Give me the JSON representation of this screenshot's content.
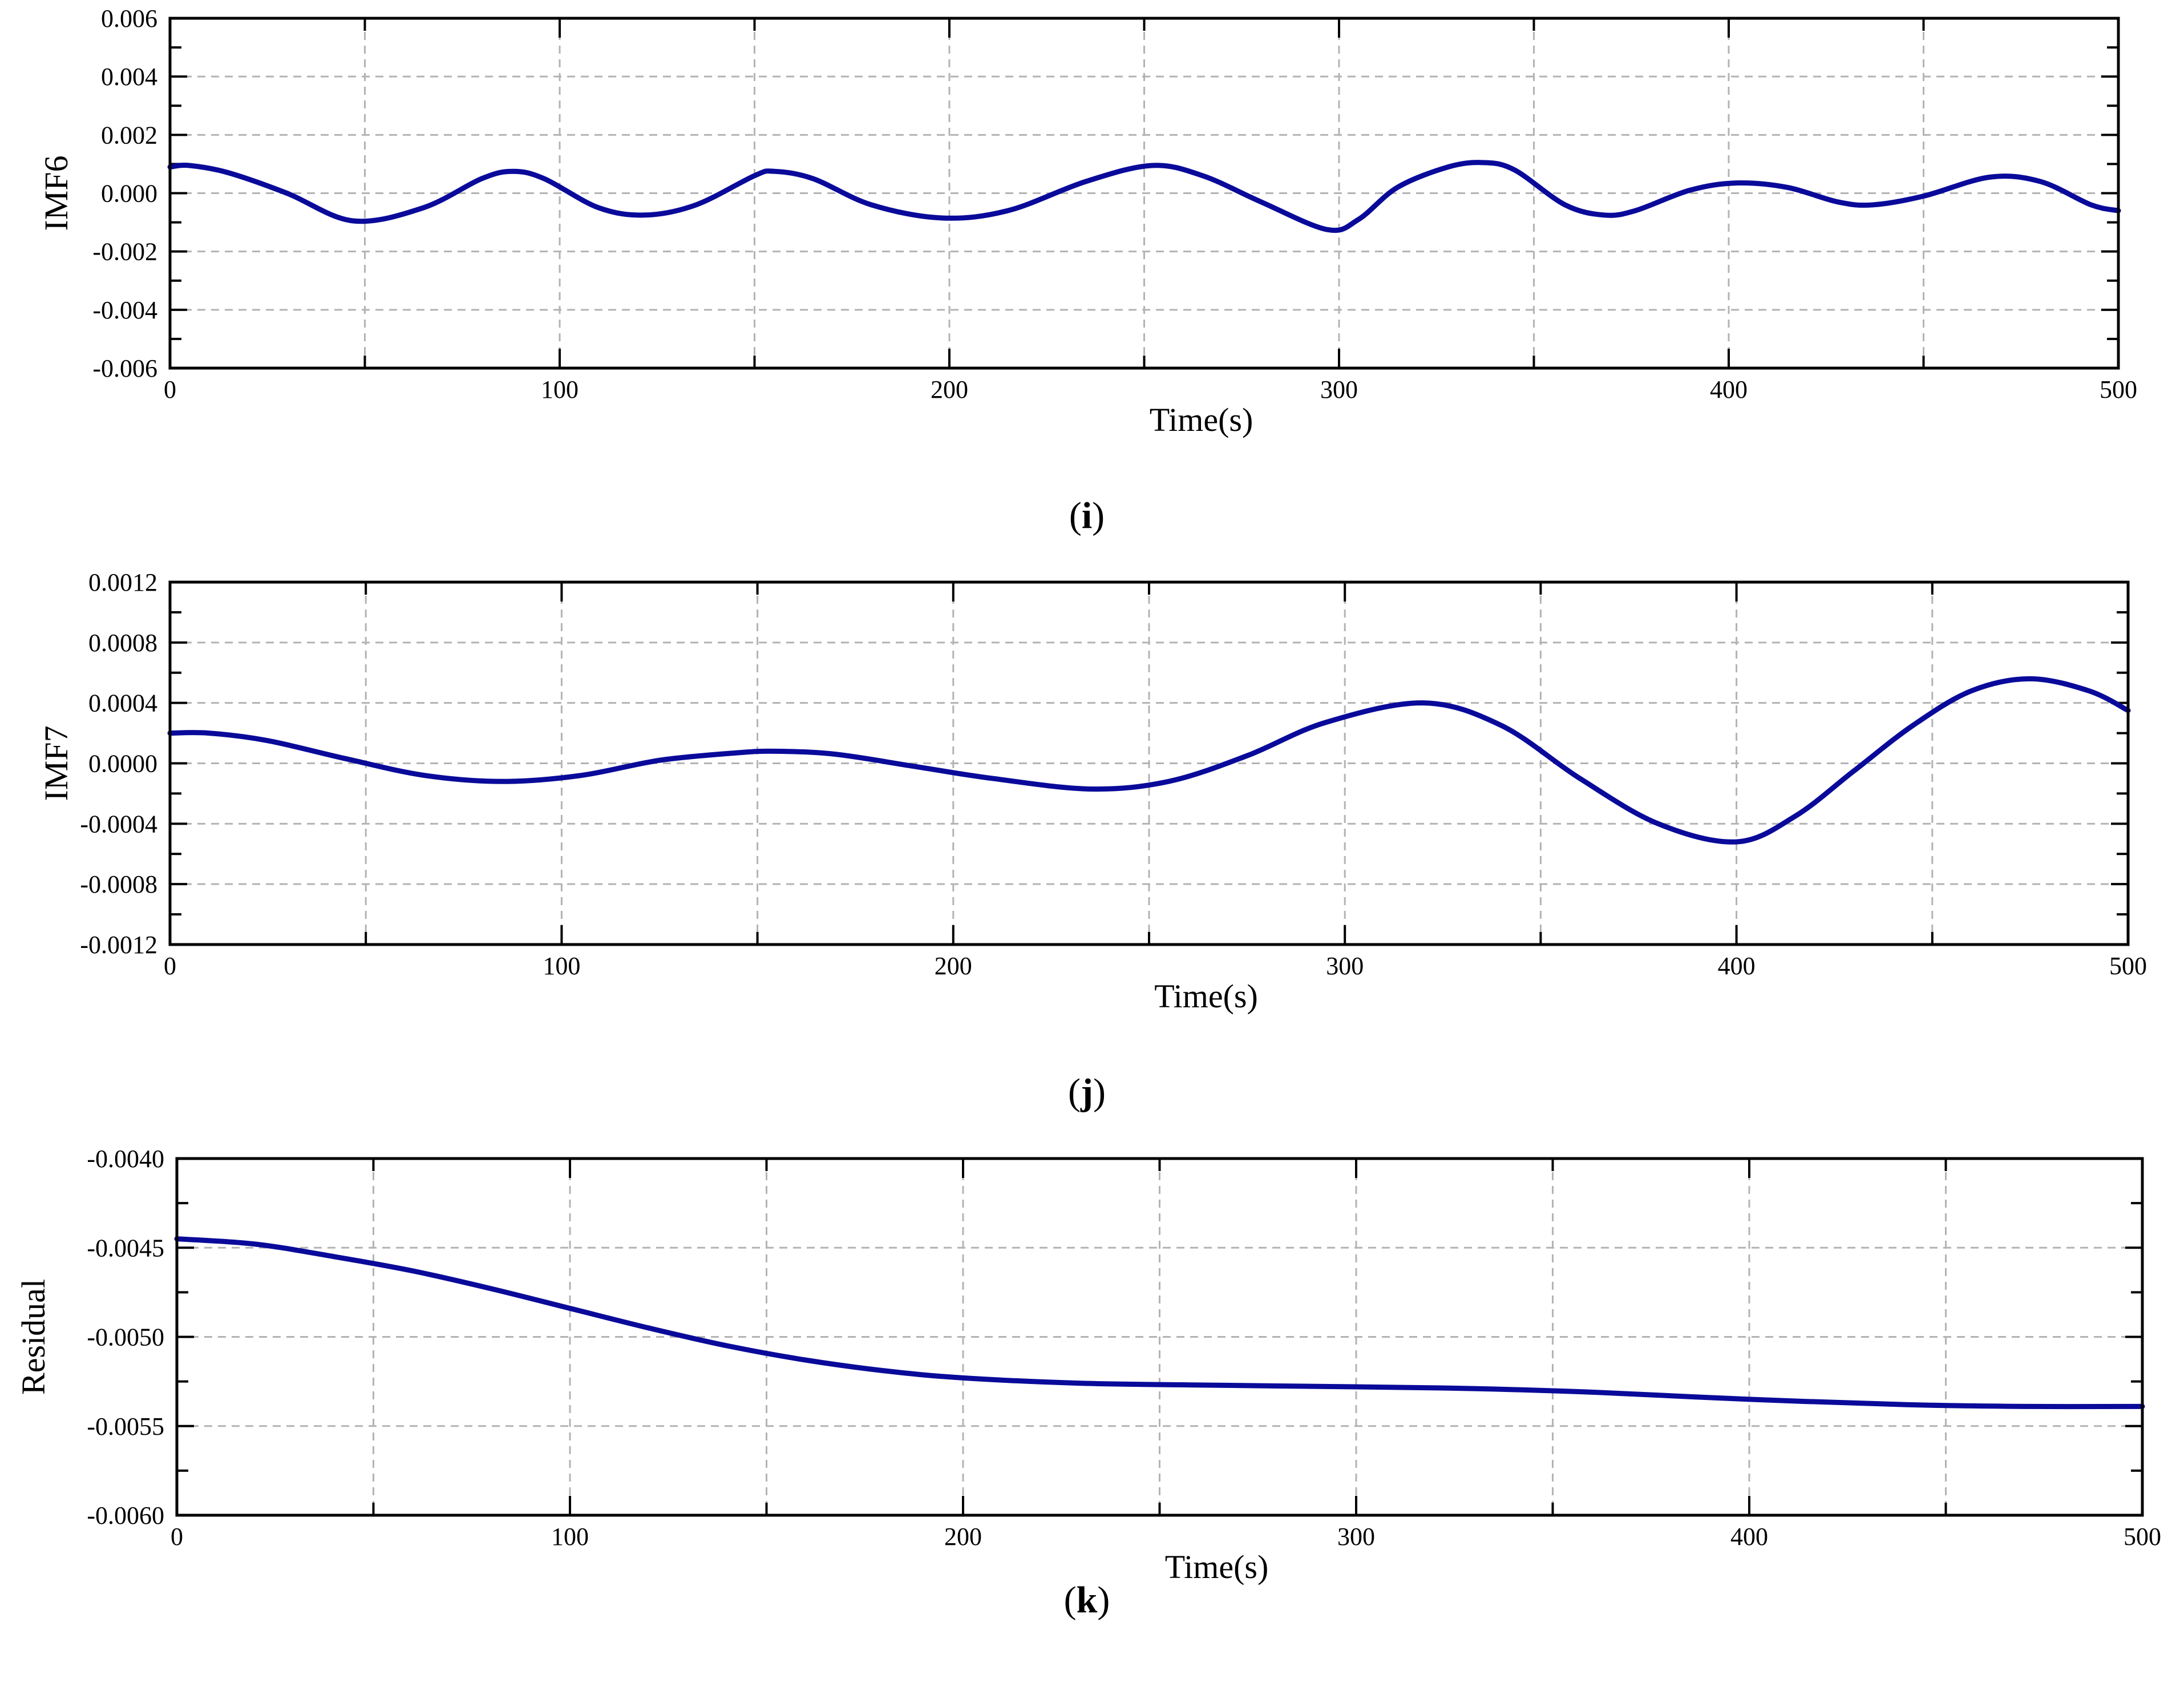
{
  "colors": {
    "series": "#0a0a9a",
    "grid": "#b3b3b3",
    "frame": "#000000"
  },
  "chart_data": [
    {
      "type": "line",
      "panel_label_prefix": "(",
      "panel_label_letter": "i",
      "panel_label_suffix": ")",
      "xlabel": "Time(s)",
      "ylabel": "IMF6",
      "xlim": [
        0,
        500
      ],
      "ylim": [
        -0.006,
        0.006
      ],
      "xticks": [
        0,
        100,
        200,
        300,
        400,
        500
      ],
      "xtick_labels": [
        "0",
        "100",
        "200",
        "300",
        "400",
        "500"
      ],
      "yticks": [
        -0.006,
        -0.004,
        -0.002,
        0.0,
        0.002,
        0.004,
        0.006
      ],
      "ytick_labels": [
        "-0.006",
        "-0.004",
        "-0.002",
        "0.000",
        "0.002",
        "0.004",
        "0.006"
      ],
      "grid": true,
      "series": [
        {
          "x": [
            0,
            5,
            15,
            30,
            47,
            65,
            80,
            88,
            96,
            110,
            122,
            135,
            150,
            155,
            165,
            180,
            198,
            215,
            235,
            252,
            265,
            280,
            297,
            305,
            315,
            328,
            337,
            345,
            358,
            368,
            376,
            390,
            402,
            415,
            428,
            437,
            450,
            467,
            480,
            493,
            500
          ],
          "y": [
            0.0009,
            0.00095,
            0.0007,
            0.0,
            -0.00095,
            -0.0005,
            0.0005,
            0.00075,
            0.0005,
            -0.0005,
            -0.00075,
            -0.0004,
            0.0006,
            0.00075,
            0.0005,
            -0.0004,
            -0.00085,
            -0.0006,
            0.0004,
            0.00095,
            0.0006,
            -0.0003,
            -0.00125,
            -0.0009,
            0.0002,
            0.0009,
            0.00105,
            0.0008,
            -0.0004,
            -0.00075,
            -0.0006,
            0.0001,
            0.00035,
            0.0002,
            -0.0003,
            -0.0004,
            -0.0001,
            0.00055,
            0.0004,
            -0.0004,
            -0.0006
          ]
        }
      ]
    },
    {
      "type": "line",
      "panel_label_prefix": "(",
      "panel_label_letter": "j",
      "panel_label_suffix": ")",
      "xlabel": "Time(s)",
      "ylabel": "IMF7",
      "xlim": [
        0,
        500
      ],
      "ylim": [
        -0.0012,
        0.0012
      ],
      "xticks": [
        0,
        100,
        200,
        300,
        400,
        500
      ],
      "xtick_labels": [
        "0",
        "100",
        "200",
        "300",
        "400",
        "500"
      ],
      "yticks": [
        -0.0012,
        -0.0008,
        -0.0004,
        0.0,
        0.0004,
        0.0008,
        0.0012
      ],
      "ytick_labels": [
        "-0.0012",
        "-0.0008",
        "-0.0004",
        "0.0000",
        "0.0004",
        "0.0008",
        "0.0012"
      ],
      "grid": true,
      "series": [
        {
          "x": [
            0,
            10,
            25,
            45,
            65,
            85,
            105,
            125,
            145,
            155,
            170,
            190,
            210,
            235,
            255,
            275,
            295,
            320,
            340,
            360,
            380,
            400,
            415,
            430,
            445,
            460,
            475,
            490,
            500
          ],
          "y": [
            0.0002,
            0.0002,
            0.00015,
            3e-05,
            -8e-05,
            -0.00012,
            -8e-05,
            2e-05,
            7e-05,
            8e-05,
            6e-05,
            -2e-05,
            -0.0001,
            -0.00017,
            -0.00012,
            5e-05,
            0.00027,
            0.0004,
            0.00025,
            -0.0001,
            -0.0004,
            -0.00052,
            -0.00035,
            -5e-05,
            0.00025,
            0.00048,
            0.00056,
            0.00048,
            0.00035
          ]
        }
      ]
    },
    {
      "type": "line",
      "panel_label_prefix": "(",
      "panel_label_letter": "k",
      "panel_label_suffix": ")",
      "xlabel": "Time(s)",
      "ylabel": "Residual",
      "xlim": [
        0,
        500
      ],
      "ylim": [
        -0.006,
        -0.004
      ],
      "xticks": [
        0,
        100,
        200,
        300,
        400,
        500
      ],
      "xtick_labels": [
        "0",
        "100",
        "200",
        "300",
        "400",
        "500"
      ],
      "yticks": [
        -0.006,
        -0.0055,
        -0.005,
        -0.0045,
        -0.004
      ],
      "ytick_labels": [
        "-0.0060",
        "-0.0055",
        "-0.0050",
        "-0.0045",
        "-0.0040"
      ],
      "grid": true,
      "series": [
        {
          "x": [
            0,
            20,
            40,
            60,
            80,
            100,
            120,
            140,
            160,
            180,
            200,
            230,
            260,
            300,
            330,
            360,
            400,
            440,
            470,
            500
          ],
          "y": [
            -0.00445,
            -0.00448,
            -0.00455,
            -0.00463,
            -0.00473,
            -0.00484,
            -0.00495,
            -0.00505,
            -0.00513,
            -0.00519,
            -0.00523,
            -0.00526,
            -0.00527,
            -0.00528,
            -0.00529,
            -0.00531,
            -0.00535,
            -0.00538,
            -0.00539,
            -0.00539
          ]
        }
      ]
    }
  ]
}
